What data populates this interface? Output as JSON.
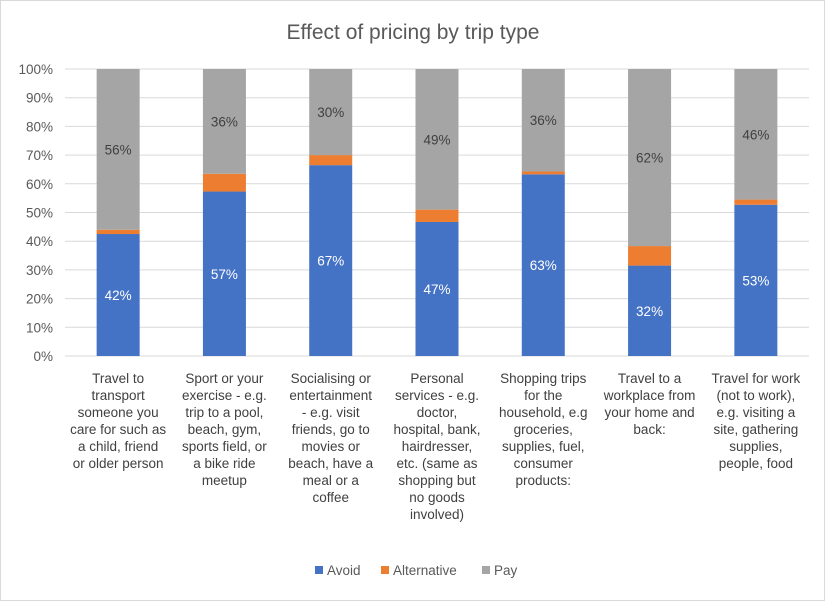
{
  "chart_data": {
    "type": "bar",
    "stacked": "percent",
    "title": "Effect of pricing by trip type",
    "xlabel": "",
    "ylabel": "",
    "ylim": [
      0,
      100
    ],
    "y_ticks": [
      "0%",
      "10%",
      "20%",
      "30%",
      "40%",
      "50%",
      "60%",
      "70%",
      "80%",
      "90%",
      "100%"
    ],
    "grid": true,
    "legend_position": "bottom",
    "categories": [
      [
        "Travel to",
        "transport",
        "someone you",
        "care for such as",
        "a child, friend",
        "or older person"
      ],
      [
        "Sport or your",
        "exercise - e.g.",
        "trip to a pool,",
        "beach, gym,",
        "sports field, or",
        "a bike ride",
        "meetup"
      ],
      [
        "Socialising or",
        "entertainment",
        "- e.g. visit",
        "friends, go to",
        "movies or",
        "beach, have a",
        "meal or a",
        "coffee"
      ],
      [
        "Personal",
        "services - e.g.",
        "doctor,",
        "hospital, bank,",
        "hairdresser,",
        "etc. (same as",
        "shopping but",
        "no goods",
        "involved)"
      ],
      [
        "Shopping trips",
        "for the",
        "household, e.g",
        "groceries,",
        "supplies, fuel,",
        "consumer",
        "products:"
      ],
      [
        "Travel to a",
        "workplace from",
        "your home and",
        "back:"
      ],
      [
        "Travel for work",
        "(not to work),",
        "e.g. visiting a",
        "site, gathering",
        "supplies,",
        "people, food"
      ]
    ],
    "series": [
      {
        "name": "Avoid",
        "color": "#4472c4",
        "values": [
          42.5,
          57.3,
          66.5,
          46.7,
          63.3,
          31.5,
          52.7
        ],
        "labels": [
          "42%",
          "57%",
          "67%",
          "47%",
          "63%",
          "32%",
          "53%"
        ],
        "label_color": "#ffffff"
      },
      {
        "name": "Alternative",
        "color": "#ed7d31",
        "values": [
          1.5,
          6.2,
          3.5,
          4.3,
          1.0,
          6.8,
          1.8
        ],
        "labels": null,
        "label_color": null
      },
      {
        "name": "Pay",
        "color": "#a5a5a5",
        "values": [
          56.0,
          36.5,
          30.0,
          49.0,
          35.7,
          61.7,
          45.5
        ],
        "labels": [
          "56%",
          "36%",
          "30%",
          "49%",
          "36%",
          "62%",
          "46%"
        ],
        "label_color": "#404040"
      }
    ]
  }
}
